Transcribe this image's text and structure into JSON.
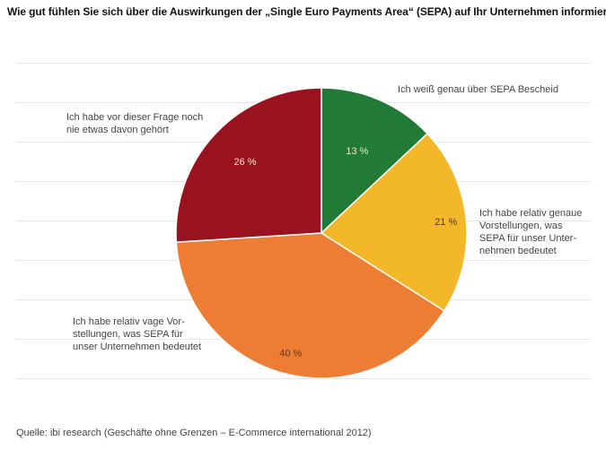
{
  "title": "Wie gut fühlen Sie sich über die Auswirkungen der „Single Euro Payments Area“ (SEPA) auf Ihr Unternehmen informiert?",
  "source": "Quelle: ibi research (Geschäfte ohne Grenzen – E-Commerce international 2012)",
  "chart_data": {
    "type": "pie",
    "categories": [
      "Ich weiß genau über SEPA Bescheid",
      "Ich habe relativ genaue Vorstellungen, was SEPA für unser Unternehmen bedeutet",
      "Ich habe relativ vage Vorstellungen, was SEPA für unser Unternehmen bedeutet",
      "Ich habe vor dieser Frage noch nie etwas davon gehört"
    ],
    "label_lines": [
      [
        "Ich weiß genau über SEPA Bescheid"
      ],
      [
        "Ich habe relativ genaue",
        "Vorstellungen, was",
        "SEPA für unser Unter-",
        "nehmen bedeutet"
      ],
      [
        "Ich habe relativ vage Vor-",
        "stellungen, was SEPA für",
        "unser Unternehmen bedeutet"
      ],
      [
        "Ich habe vor dieser Frage noch",
        "nie etwas davon gehört"
      ]
    ],
    "values": [
      13,
      21,
      40,
      26
    ],
    "value_labels": [
      "13 %",
      "21 %",
      "40 %",
      "26 %"
    ],
    "colors": [
      "#217a35",
      "#f3b829",
      "#ed7d35",
      "#981220"
    ]
  }
}
